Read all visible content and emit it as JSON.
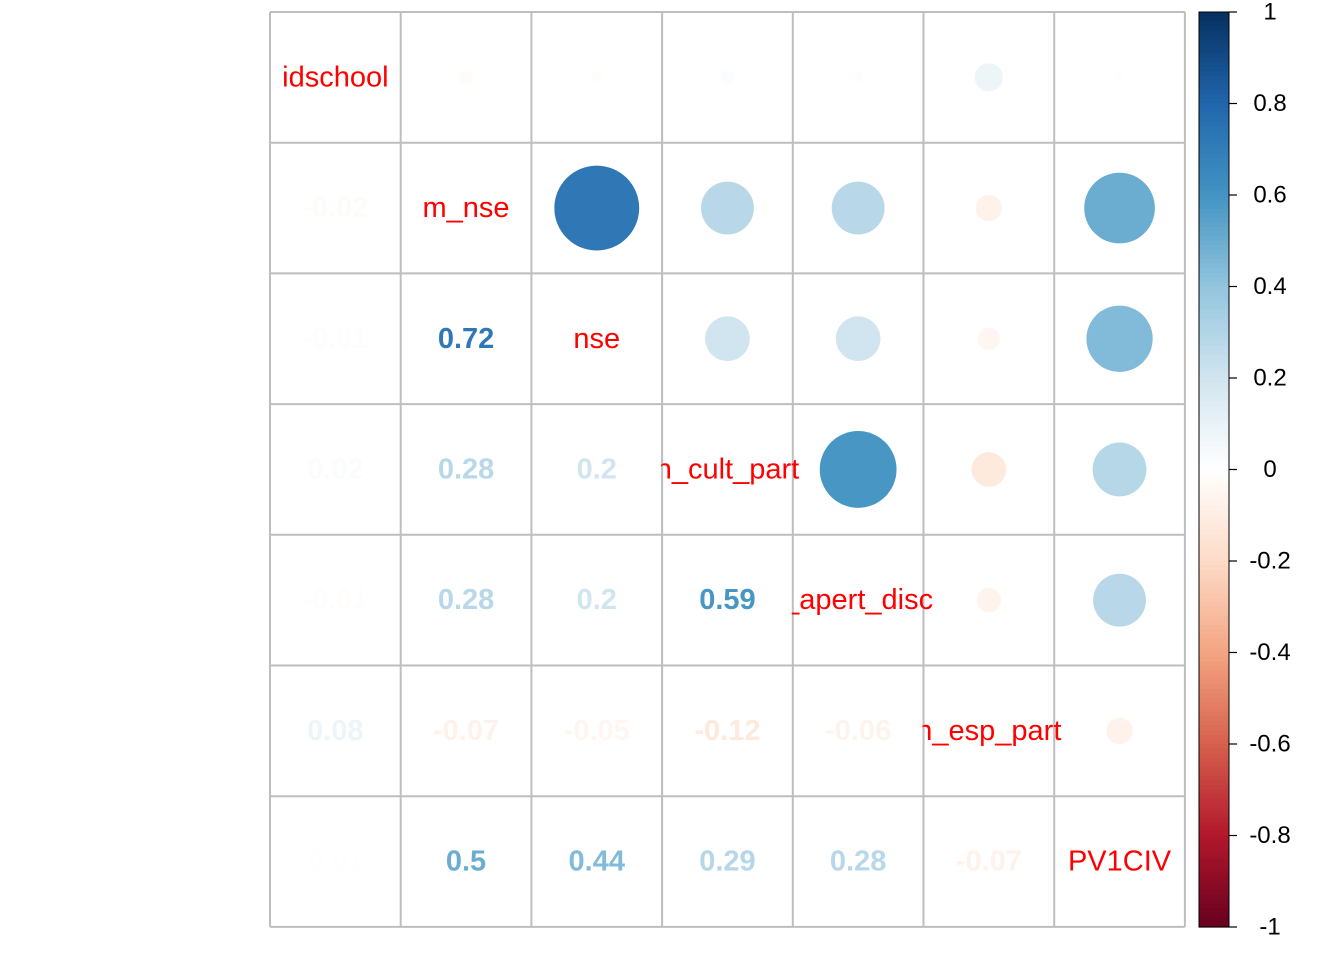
{
  "chart_data": {
    "type": "heatmap",
    "variables": [
      "idschool",
      "m_nse",
      "nse",
      "m_cult_part",
      "m_apert_disc",
      "m_esp_part",
      "PV1CIV"
    ],
    "diagonal_labels": [
      "idschool",
      "m_nse",
      "nse",
      "n_cult_part",
      "_apert_disc",
      "n_esp_part",
      "PV1CIV"
    ],
    "matrix": [
      [
        1.0,
        -0.02,
        -0.01,
        0.02,
        -0.01,
        0.08,
        0.01
      ],
      [
        -0.02,
        1.0,
        0.72,
        0.28,
        0.28,
        -0.07,
        0.5
      ],
      [
        -0.01,
        0.72,
        1.0,
        0.2,
        0.2,
        -0.05,
        0.44
      ],
      [
        0.02,
        0.28,
        0.2,
        1.0,
        0.59,
        -0.12,
        0.29
      ],
      [
        -0.01,
        0.28,
        0.2,
        0.59,
        1.0,
        -0.06,
        0.28
      ],
      [
        0.08,
        -0.07,
        -0.05,
        -0.12,
        -0.06,
        1.0,
        -0.07
      ],
      [
        0.01,
        0.5,
        0.44,
        0.29,
        0.28,
        -0.07,
        1.0
      ]
    ],
    "lower_text": [
      [
        "",
        "",
        "",
        "",
        "",
        "",
        ""
      ],
      [
        "-0.02",
        "",
        "",
        "",
        "",
        "",
        ""
      ],
      [
        "-0.01",
        "0.72",
        "",
        "",
        "",
        "",
        ""
      ],
      [
        "0.02",
        "0.28",
        "0.2",
        "",
        "",
        "",
        ""
      ],
      [
        "-0.01",
        "0.28",
        "0.2",
        "0.59",
        "",
        "",
        ""
      ],
      [
        "0.08",
        "-0.07",
        "-0.05",
        "-0.12",
        "-0.06",
        "",
        ""
      ],
      [
        "0.01",
        "0.5",
        "0.44",
        "0.29",
        "0.28",
        "-0.07",
        ""
      ]
    ],
    "upper_method": "circle",
    "lower_method": "number",
    "label_color": "#FF0000",
    "grid": true,
    "colorbar": {
      "range": [
        -1,
        1
      ],
      "ticks": [
        "1",
        "0.8",
        "0.6",
        "0.4",
        "0.2",
        "0",
        "-0.2",
        "-0.4",
        "-0.6",
        "-0.8",
        "-1"
      ],
      "colors": [
        "#67001F",
        "#B2182B",
        "#D6604D",
        "#F4A582",
        "#FDDBC7",
        "#FFFFFF",
        "#D1E5F0",
        "#92C5DE",
        "#4393C3",
        "#2166AC",
        "#053061"
      ],
      "placement": "right"
    }
  }
}
